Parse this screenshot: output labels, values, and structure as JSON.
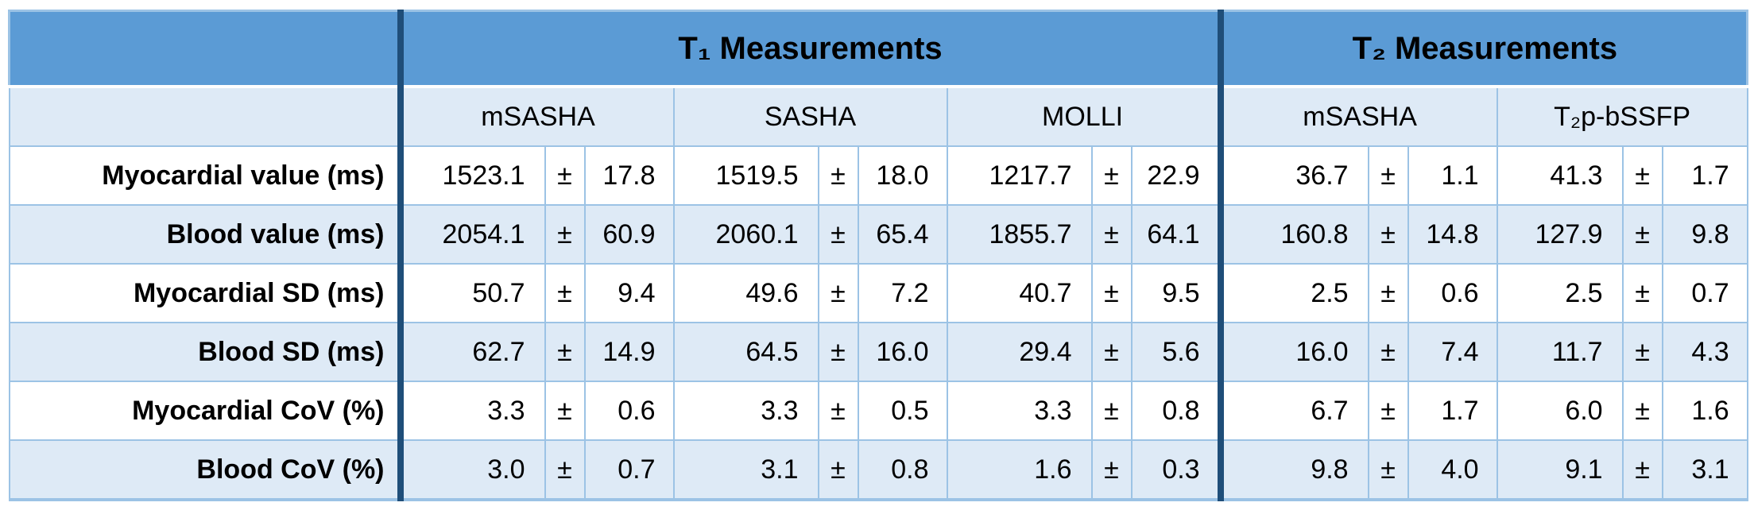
{
  "table": {
    "corner_label": "",
    "group_headers": {
      "t1": "T₁ Measurements",
      "t2": "T₂ Measurements"
    },
    "method_headers": [
      "mSASHA",
      "SASHA",
      "MOLLI",
      "mSASHA",
      "T₂p-bSSFP"
    ],
    "plus_minus": "±",
    "rows": [
      {
        "label": "Myocardial value (ms)",
        "values": [
          {
            "mean": "1523.1",
            "sd": "17.8"
          },
          {
            "mean": "1519.5",
            "sd": "18.0"
          },
          {
            "mean": "1217.7",
            "sd": "22.9"
          },
          {
            "mean": "36.7",
            "sd": "1.1"
          },
          {
            "mean": "41.3",
            "sd": "1.7"
          }
        ]
      },
      {
        "label": "Blood value (ms)",
        "values": [
          {
            "mean": "2054.1",
            "sd": "60.9"
          },
          {
            "mean": "2060.1",
            "sd": "65.4"
          },
          {
            "mean": "1855.7",
            "sd": "64.1"
          },
          {
            "mean": "160.8",
            "sd": "14.8"
          },
          {
            "mean": "127.9",
            "sd": "9.8"
          }
        ]
      },
      {
        "label": "Myocardial SD (ms)",
        "values": [
          {
            "mean": "50.7",
            "sd": "9.4"
          },
          {
            "mean": "49.6",
            "sd": "7.2"
          },
          {
            "mean": "40.7",
            "sd": "9.5"
          },
          {
            "mean": "2.5",
            "sd": "0.6"
          },
          {
            "mean": "2.5",
            "sd": "0.7"
          }
        ]
      },
      {
        "label": "Blood SD (ms)",
        "values": [
          {
            "mean": "62.7",
            "sd": "14.9"
          },
          {
            "mean": "64.5",
            "sd": "16.0"
          },
          {
            "mean": "29.4",
            "sd": "5.6"
          },
          {
            "mean": "16.0",
            "sd": "7.4"
          },
          {
            "mean": "11.7",
            "sd": "4.3"
          }
        ]
      },
      {
        "label": "Myocardial CoV (%)",
        "values": [
          {
            "mean": "3.3",
            "sd": "0.6"
          },
          {
            "mean": "3.3",
            "sd": "0.5"
          },
          {
            "mean": "3.3",
            "sd": "0.8"
          },
          {
            "mean": "6.7",
            "sd": "1.7"
          },
          {
            "mean": "6.0",
            "sd": "1.6"
          }
        ]
      },
      {
        "label": "Blood CoV (%)",
        "values": [
          {
            "mean": "3.0",
            "sd": "0.7"
          },
          {
            "mean": "3.1",
            "sd": "0.8"
          },
          {
            "mean": "1.6",
            "sd": "0.3"
          },
          {
            "mean": "9.8",
            "sd": "4.0"
          },
          {
            "mean": "9.1",
            "sd": "3.1"
          }
        ]
      }
    ]
  },
  "colors": {
    "header_band": "#5B9BD5",
    "pale_row": "#DEEAF6",
    "light_border": "#9CC3E5",
    "dark_divider": "#1F4E79",
    "text": "#000000"
  },
  "chart_data": {
    "type": "table",
    "title": "",
    "column_groups": [
      "T₁ Measurements",
      "T₂ Measurements"
    ],
    "columns": [
      "mSASHA (T₁)",
      "SASHA (T₁)",
      "MOLLI (T₁)",
      "mSASHA (T₂)",
      "T₂p-bSSFP (T₂)"
    ],
    "row_labels": [
      "Myocardial value (ms)",
      "Blood value (ms)",
      "Myocardial SD (ms)",
      "Blood SD (ms)",
      "Myocardial CoV (%)",
      "Blood CoV (%)"
    ],
    "values_mean": [
      [
        1523.1,
        1519.5,
        1217.7,
        36.7,
        41.3
      ],
      [
        2054.1,
        2060.1,
        1855.7,
        160.8,
        127.9
      ],
      [
        50.7,
        49.6,
        40.7,
        2.5,
        2.5
      ],
      [
        62.7,
        64.5,
        29.4,
        16.0,
        11.7
      ],
      [
        3.3,
        3.3,
        3.3,
        6.7,
        6.0
      ],
      [
        3.0,
        3.1,
        1.6,
        9.8,
        9.1
      ]
    ],
    "values_sd": [
      [
        17.8,
        18.0,
        22.9,
        1.1,
        1.7
      ],
      [
        60.9,
        65.4,
        64.1,
        14.8,
        9.8
      ],
      [
        9.4,
        7.2,
        9.5,
        0.6,
        0.7
      ],
      [
        14.9,
        16.0,
        5.6,
        7.4,
        4.3
      ],
      [
        0.6,
        0.5,
        0.8,
        1.7,
        1.6
      ],
      [
        0.7,
        0.8,
        0.3,
        4.0,
        3.1
      ]
    ]
  }
}
